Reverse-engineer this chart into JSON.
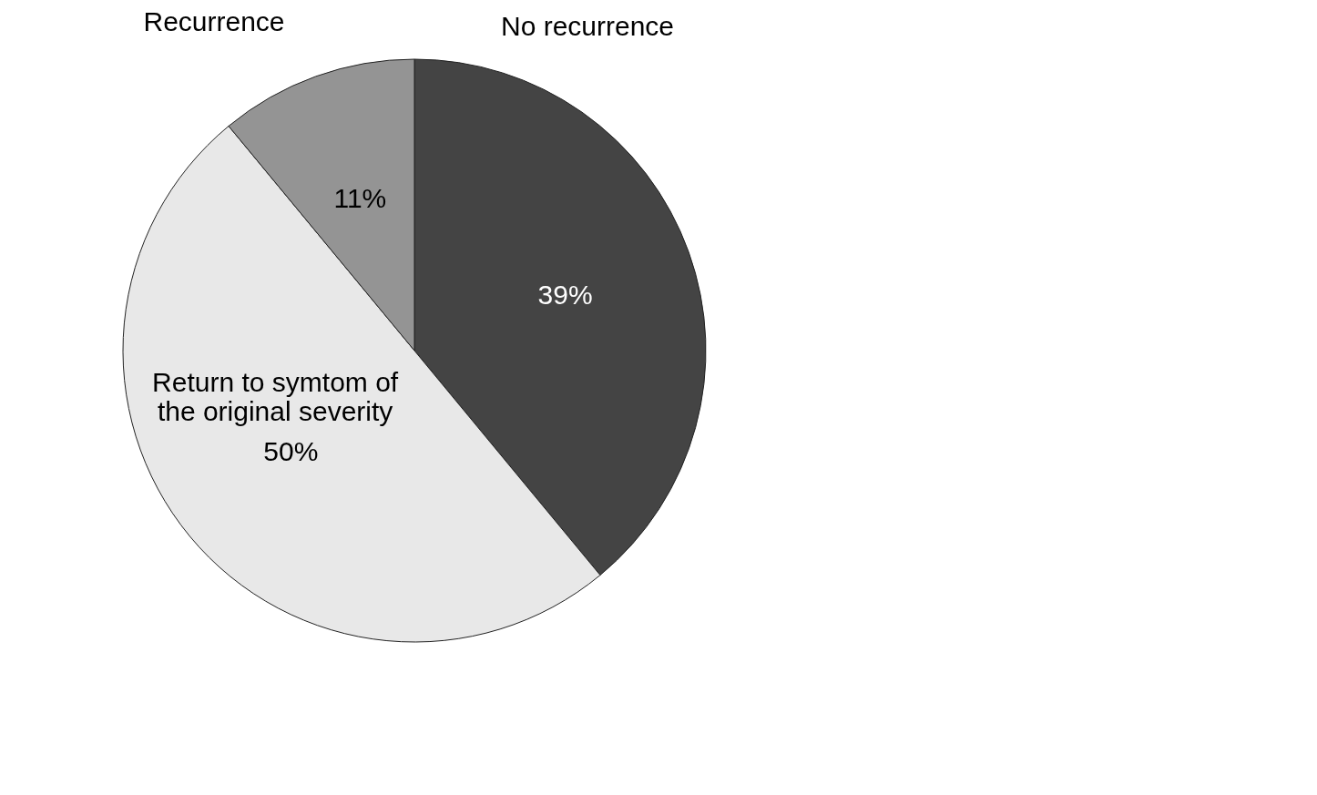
{
  "chart_data": {
    "type": "pie",
    "categories": [
      "No recurrence",
      "Return to symtom of the original severity",
      null
    ],
    "values": [
      39,
      50,
      11
    ],
    "colors": [
      "#444444",
      "#e8e8e8",
      "#949494"
    ],
    "value_labels": [
      "39%",
      "50%",
      "11%"
    ],
    "legend": false,
    "annotations": [
      "Recurrence"
    ]
  }
}
